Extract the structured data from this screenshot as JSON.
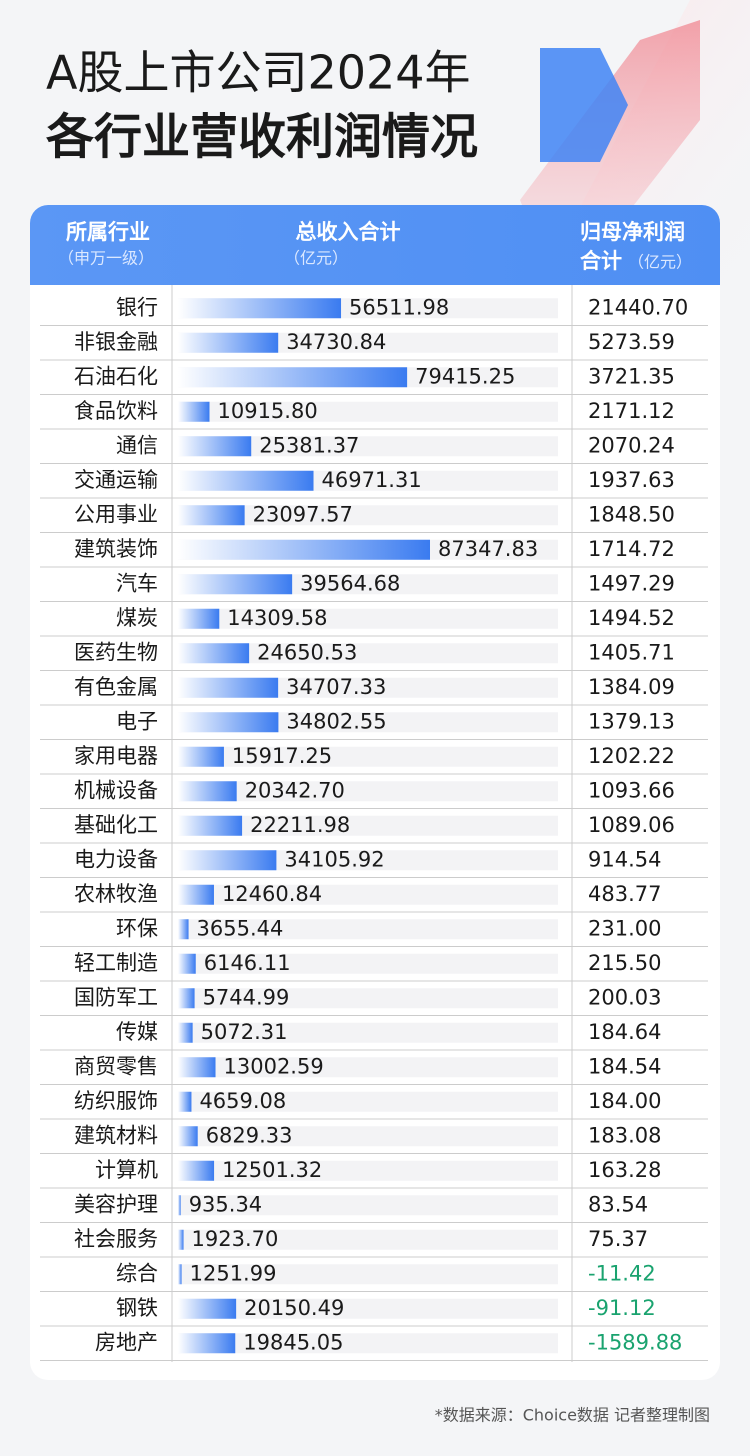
{
  "chart_data": {
    "type": "bar",
    "title": [
      "A股上市公司2024年",
      "各行业营收利润情况"
    ],
    "columns": [
      [
        "所属行业",
        "（申万一级）"
      ],
      [
        "总收入合计",
        "（亿元）"
      ],
      [
        "归母净利润",
        "合计",
        "（亿元）"
      ]
    ],
    "categories": [
      "银行",
      "非银金融",
      "石油石化",
      "食品饮料",
      "通信",
      "交通运输",
      "公用事业",
      "建筑装饰",
      "汽车",
      "煤炭",
      "医药生物",
      "有色金属",
      "电子",
      "家用电器",
      "机械设备",
      "基础化工",
      "电力设备",
      "农林牧渔",
      "环保",
      "轻工制造",
      "国防军工",
      "传媒",
      "商贸零售",
      "纺织服饰",
      "建筑材料",
      "计算机",
      "美容护理",
      "社会服务",
      "综合",
      "钢铁",
      "房地产"
    ],
    "series": [
      {
        "name": "总收入合计",
        "color": "#3a7bf0",
        "values": [
          56511.98,
          34730.84,
          79415.25,
          10915.8,
          25381.37,
          46971.31,
          23097.57,
          87347.83,
          39564.68,
          14309.58,
          24650.53,
          34707.33,
          34802.55,
          15917.25,
          20342.7,
          22211.98,
          34105.92,
          12460.84,
          3655.44,
          6146.11,
          5744.99,
          5072.31,
          13002.59,
          4659.08,
          6829.33,
          12501.32,
          935.34,
          1923.7,
          1251.99,
          20150.49,
          19845.05
        ],
        "value_labels": [
          "56511.98",
          "34730.84",
          "79415.25",
          "10915.80",
          "25381.37",
          "46971.31",
          "23097.57",
          "87347.83",
          "39564.68",
          "14309.58",
          "24650.53",
          "34707.33",
          "34802.55",
          "15917.25",
          "20342.70",
          "22211.98",
          "34105.92",
          "12460.84",
          "3655.44",
          "6146.11",
          "5744.99",
          "5072.31",
          "13002.59",
          "4659.08",
          "6829.33",
          "12501.32",
          "935.34",
          "1923.70",
          "1251.99",
          "20150.49",
          "19845.05"
        ]
      }
    ],
    "net_profit": [
      "21440.70",
      "5273.59",
      "3721.35",
      "2171.12",
      "2070.24",
      "1937.63",
      "1848.50",
      "1714.72",
      "1497.29",
      "1494.52",
      "1405.71",
      "1384.09",
      "1379.13",
      "1202.22",
      "1093.66",
      "1089.06",
      "914.54",
      "483.77",
      "231.00",
      "215.50",
      "200.03",
      "184.64",
      "184.54",
      "184.00",
      "183.08",
      "163.28",
      "83.54",
      "75.37",
      "-11.42",
      "-91.12",
      "-1589.88"
    ],
    "negative_color": "#1aa36f",
    "source": "*数据来源：Choice数据  记者整理制图"
  }
}
